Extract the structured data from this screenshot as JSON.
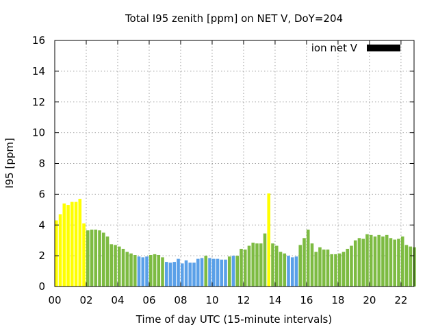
{
  "chart_data": {
    "type": "bar",
    "title": "Total I95 zenith [ppm] on NET V, DoY=204",
    "xlabel": "Time of day UTC (15-minute intervals)",
    "ylabel": "I95 [ppm]",
    "ylim": [
      0,
      16
    ],
    "xlim": [
      0,
      22.83
    ],
    "xticks": [
      0,
      2,
      4,
      6,
      8,
      10,
      12,
      14,
      16,
      18,
      20,
      22
    ],
    "xtick_labels": [
      "00",
      "02",
      "04",
      "06",
      "08",
      "10",
      "12",
      "14",
      "16",
      "18",
      "20",
      "22"
    ],
    "yticks": [
      0,
      2,
      4,
      6,
      8,
      10,
      12,
      14,
      16
    ],
    "ytick_labels": [
      "0",
      "2",
      "4",
      "6",
      "8",
      "10",
      "12",
      "14",
      "16"
    ],
    "grid": true,
    "bar_interval_hours": 0.25,
    "legend": {
      "label": "ion net V",
      "position": "top-right",
      "color": "#000000"
    },
    "colors": {
      "yellow": "#ffff00",
      "green": "#7dbb42",
      "blue": "#5aa0e8"
    },
    "values": [
      4.3,
      4.7,
      5.4,
      5.3,
      5.5,
      5.5,
      5.7,
      4.1,
      3.65,
      3.7,
      3.7,
      3.65,
      3.5,
      3.25,
      2.75,
      2.7,
      2.6,
      2.45,
      2.25,
      2.15,
      2.05,
      1.95,
      1.9,
      1.95,
      2.05,
      2.1,
      2.05,
      1.9,
      1.6,
      1.55,
      1.6,
      1.8,
      1.5,
      1.7,
      1.55,
      1.55,
      1.8,
      1.85,
      2.0,
      1.85,
      1.8,
      1.8,
      1.75,
      1.75,
      1.95,
      2.0,
      2.0,
      2.45,
      2.4,
      2.65,
      2.85,
      2.8,
      2.8,
      3.45,
      6.05,
      2.8,
      2.65,
      2.25,
      2.15,
      2.0,
      1.9,
      1.95,
      2.7,
      3.15,
      3.7,
      2.8,
      2.25,
      2.55,
      2.4,
      2.4,
      2.1,
      2.1,
      2.15,
      2.25,
      2.45,
      2.65,
      3.0,
      3.15,
      3.1,
      3.4,
      3.35,
      3.25,
      3.35,
      3.25,
      3.35,
      3.15,
      3.05,
      3.1,
      3.25,
      2.7,
      2.6,
      2.55
    ],
    "bar_colors": [
      "yellow",
      "yellow",
      "yellow",
      "yellow",
      "yellow",
      "yellow",
      "yellow",
      "yellow",
      "green",
      "green",
      "green",
      "green",
      "green",
      "green",
      "green",
      "green",
      "green",
      "green",
      "green",
      "green",
      "green",
      "blue",
      "blue",
      "blue",
      "green",
      "green",
      "green",
      "green",
      "blue",
      "blue",
      "blue",
      "blue",
      "blue",
      "blue",
      "blue",
      "blue",
      "blue",
      "blue",
      "green",
      "blue",
      "blue",
      "blue",
      "blue",
      "blue",
      "green",
      "blue",
      "green",
      "green",
      "green",
      "green",
      "green",
      "green",
      "green",
      "green",
      "yellow",
      "green",
      "green",
      "green",
      "green",
      "blue",
      "blue",
      "blue",
      "green",
      "green",
      "green",
      "green",
      "green",
      "green",
      "green",
      "green",
      "green",
      "green",
      "green",
      "green",
      "green",
      "green",
      "green",
      "green",
      "green",
      "green",
      "green",
      "green",
      "green",
      "green",
      "green",
      "green",
      "green",
      "green",
      "green",
      "green",
      "green",
      "green"
    ]
  }
}
